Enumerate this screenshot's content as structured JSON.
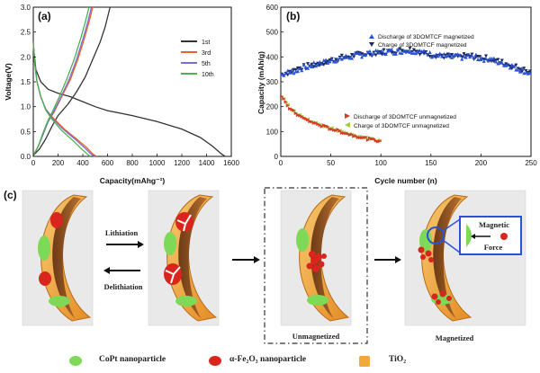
{
  "panel_labels": {
    "a": "(a)",
    "b": "(b)",
    "c": "(c)"
  },
  "colors": {
    "first": "#333333",
    "third": "#e8602a",
    "fifth": "#7b6ed0",
    "tenth": "#4caf50",
    "discharge_mag": "#2a52d6",
    "charge_mag": "#1a2a60",
    "discharge_unmag": "#d23a2a",
    "charge_unmag": "#9ecf3a",
    "shell": "#f2a93b",
    "shell_dark": "#c8741e",
    "copt": "#7ed957",
    "fe2o3": "#d9251d"
  },
  "chart_data": [
    {
      "type": "line",
      "title": "(a)",
      "xlabel": "Capacity(mAhg⁻¹)",
      "ylabel": "Voltage(V)",
      "xlim": [
        0,
        1600
      ],
      "ylim": [
        0,
        3.0
      ],
      "xticks": [
        "0",
        "200",
        "400",
        "600",
        "800",
        "1000",
        "1200",
        "1400",
        "1600"
      ],
      "yticks": [
        "0.0",
        "0.5",
        "1.0",
        "1.5",
        "2.0",
        "2.5",
        "3.0"
      ],
      "legend": [
        "1st",
        "3rd",
        "5th",
        "10th"
      ],
      "series": [
        {
          "name": "1st",
          "discharge": [
            [
              0,
              2.25
            ],
            [
              20,
              1.75
            ],
            [
              60,
              1.5
            ],
            [
              120,
              1.35
            ],
            [
              200,
              1.27
            ],
            [
              300,
              1.2
            ],
            [
              400,
              1.1
            ],
            [
              500,
              1.0
            ],
            [
              600,
              0.92
            ],
            [
              800,
              0.82
            ],
            [
              1000,
              0.7
            ],
            [
              1200,
              0.55
            ],
            [
              1350,
              0.38
            ],
            [
              1450,
              0.2
            ],
            [
              1520,
              0.05
            ],
            [
              1550,
              0.0
            ]
          ],
          "charge": [
            [
              0,
              0.02
            ],
            [
              50,
              0.15
            ],
            [
              100,
              0.35
            ],
            [
              150,
              0.6
            ],
            [
              200,
              0.82
            ],
            [
              280,
              1.05
            ],
            [
              350,
              1.3
            ],
            [
              420,
              1.6
            ],
            [
              480,
              1.95
            ],
            [
              540,
              2.3
            ],
            [
              580,
              2.6
            ],
            [
              620,
              3.0
            ]
          ]
        },
        {
          "name": "3rd",
          "discharge": [
            [
              0,
              2.3
            ],
            [
              10,
              1.9
            ],
            [
              30,
              1.5
            ],
            [
              60,
              1.2
            ],
            [
              100,
              0.95
            ],
            [
              150,
              0.8
            ],
            [
              250,
              0.55
            ],
            [
              350,
              0.35
            ],
            [
              430,
              0.18
            ],
            [
              480,
              0.05
            ],
            [
              510,
              0.0
            ]
          ],
          "charge": [
            [
              0,
              0.02
            ],
            [
              40,
              0.2
            ],
            [
              80,
              0.45
            ],
            [
              120,
              0.7
            ],
            [
              170,
              0.9
            ],
            [
              230,
              1.2
            ],
            [
              300,
              1.55
            ],
            [
              360,
              1.95
            ],
            [
              410,
              2.35
            ],
            [
              450,
              2.7
            ],
            [
              480,
              3.0
            ]
          ]
        },
        {
          "name": "5th",
          "discharge": [
            [
              0,
              2.3
            ],
            [
              10,
              1.9
            ],
            [
              30,
              1.5
            ],
            [
              60,
              1.2
            ],
            [
              100,
              0.95
            ],
            [
              150,
              0.78
            ],
            [
              240,
              0.55
            ],
            [
              340,
              0.34
            ],
            [
              420,
              0.16
            ],
            [
              470,
              0.04
            ],
            [
              495,
              0.0
            ]
          ],
          "charge": [
            [
              0,
              0.02
            ],
            [
              40,
              0.2
            ],
            [
              80,
              0.45
            ],
            [
              120,
              0.7
            ],
            [
              165,
              0.9
            ],
            [
              225,
              1.2
            ],
            [
              290,
              1.55
            ],
            [
              350,
              1.95
            ],
            [
              400,
              2.35
            ],
            [
              440,
              2.7
            ],
            [
              470,
              3.0
            ]
          ]
        },
        {
          "name": "10th",
          "discharge": [
            [
              0,
              2.3
            ],
            [
              10,
              1.9
            ],
            [
              30,
              1.5
            ],
            [
              60,
              1.2
            ],
            [
              100,
              0.93
            ],
            [
              150,
              0.75
            ],
            [
              230,
              0.52
            ],
            [
              320,
              0.32
            ],
            [
              390,
              0.15
            ],
            [
              440,
              0.04
            ],
            [
              460,
              0.0
            ]
          ],
          "charge": [
            [
              0,
              0.02
            ],
            [
              40,
              0.2
            ],
            [
              75,
              0.45
            ],
            [
              115,
              0.7
            ],
            [
              155,
              0.9
            ],
            [
              210,
              1.2
            ],
            [
              270,
              1.55
            ],
            [
              330,
              1.95
            ],
            [
              380,
              2.35
            ],
            [
              420,
              2.7
            ],
            [
              450,
              3.0
            ]
          ]
        }
      ]
    },
    {
      "type": "scatter",
      "title": "(b)",
      "xlabel": "Cycle number (n)",
      "ylabel": "Capacity (mAh/g)",
      "xlim": [
        0,
        250
      ],
      "ylim": [
        0,
        600
      ],
      "xticks": [
        "0",
        "50",
        "100",
        "150",
        "200",
        "250"
      ],
      "yticks": [
        "0",
        "100",
        "200",
        "300",
        "400",
        "500",
        "600"
      ],
      "legend_magnetized": [
        "Discharge of 3DOMTCF magnetized",
        "Charge of 3DOMTCF magnetized"
      ],
      "legend_unmagnetized": [
        "Discharge of 3DOMTCF unmagnetized",
        "Charge of 3DOMTCF unmagnetized"
      ],
      "magnetized_keypoints": [
        [
          1,
          330
        ],
        [
          10,
          340
        ],
        [
          20,
          355
        ],
        [
          40,
          375
        ],
        [
          60,
          395
        ],
        [
          80,
          410
        ],
        [
          100,
          418
        ],
        [
          120,
          425
        ],
        [
          130,
          428
        ],
        [
          150,
          410
        ],
        [
          170,
          400
        ],
        [
          190,
          402
        ],
        [
          210,
          390
        ],
        [
          230,
          365
        ],
        [
          250,
          335
        ]
      ],
      "unmagnetized_keypoints": [
        [
          1,
          240
        ],
        [
          5,
          215
        ],
        [
          10,
          190
        ],
        [
          20,
          160
        ],
        [
          30,
          140
        ],
        [
          40,
          125
        ],
        [
          50,
          112
        ],
        [
          60,
          100
        ],
        [
          70,
          88
        ],
        [
          80,
          78
        ],
        [
          90,
          68
        ],
        [
          100,
          62
        ]
      ]
    }
  ],
  "diagram": {
    "lithiation": "Lithiation",
    "delithiation": "Delithiation",
    "unmagnetized": "Unmagnetized",
    "magnetized": "Magnetized",
    "magnetic_force": [
      "Magnetic",
      "Force"
    ]
  },
  "bottom_legend": {
    "copt": "CoPt nanoparticle",
    "fe2o3": "α-Fe₂O₃ nanoparticle",
    "tio2": "TiO₂"
  }
}
